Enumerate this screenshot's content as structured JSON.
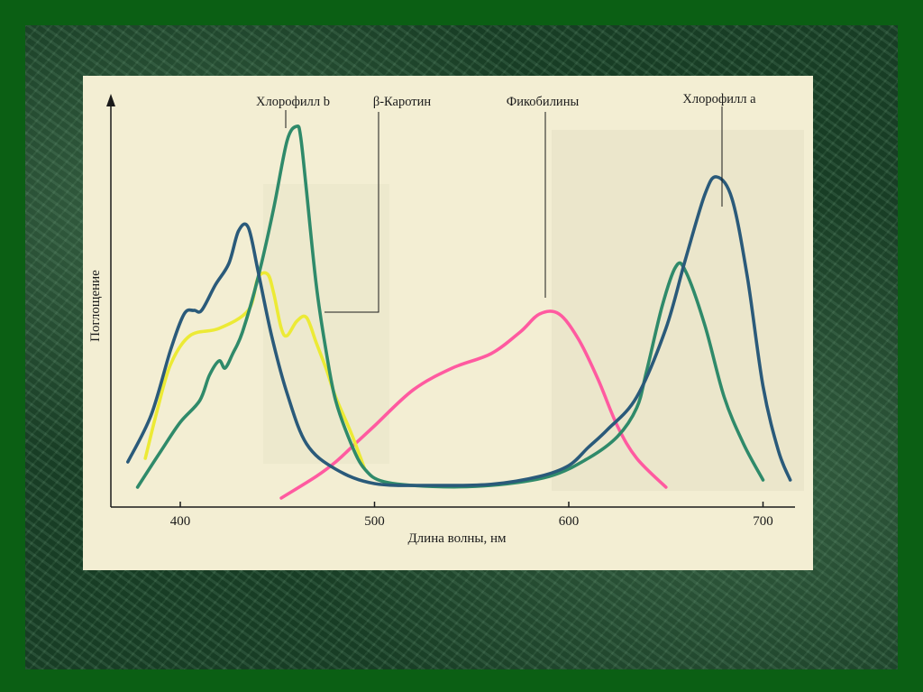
{
  "colors": {
    "frame": "#0b5f14",
    "paper": "#f3eed3"
  },
  "chart_data": {
    "type": "line",
    "xlabel": "Длина волны, нм",
    "ylabel": "Поглощение",
    "xlim": [
      370,
      720
    ],
    "ylim": [
      0,
      100
    ],
    "x_ticks": [
      400,
      500,
      600,
      700
    ],
    "x_tick_labels": [
      "400",
      "500",
      "600",
      "700"
    ],
    "grid": false,
    "legend": "labels on curves",
    "series": [
      {
        "name": "Хлорофилл a",
        "color": "#2a5a7a",
        "x": [
          373,
          385,
          395,
          402,
          407,
          411,
          418,
          425,
          430,
          435,
          440,
          447,
          455,
          465,
          480,
          500,
          530,
          560,
          585,
          600,
          610,
          620,
          635,
          650,
          660,
          670,
          676,
          684,
          692,
          700,
          708,
          714
        ],
        "y": [
          7,
          20,
          38,
          48,
          49,
          49,
          56,
          62,
          71,
          72,
          60,
          42,
          26,
          12,
          5,
          1,
          0.5,
          0.8,
          3,
          6,
          11,
          16,
          25,
          44,
          63,
          81,
          86,
          80,
          58,
          28,
          10,
          2
        ]
      },
      {
        "name": "Хлорофилл b",
        "color": "#2f8a6a",
        "x": [
          378,
          390,
          400,
          410,
          415,
          420,
          423,
          427,
          432,
          440,
          448,
          455,
          460,
          462,
          465,
          470,
          475,
          480,
          488,
          495,
          505,
          530,
          560,
          590,
          610,
          625,
          635,
          640,
          648,
          655,
          660,
          670,
          680,
          690,
          700
        ],
        "y": [
          0,
          10,
          18,
          24,
          31,
          35,
          33,
          37,
          43,
          58,
          77,
          96,
          100,
          97,
          82,
          56,
          38,
          24,
          12,
          5,
          1.5,
          0.2,
          0.5,
          3,
          8,
          14,
          22,
          32,
          50,
          61,
          60,
          45,
          25,
          12,
          2
        ]
      },
      {
        "name": "β-Каротин",
        "color": "#ecea35",
        "x": [
          382,
          388,
          395,
          405,
          420,
          435,
          440,
          445,
          448,
          452,
          455,
          460,
          465,
          470,
          475,
          480,
          488,
          495
        ],
        "y": [
          8,
          21,
          34,
          42,
          44,
          49,
          58,
          59,
          54,
          44,
          42,
          46,
          47,
          40,
          33,
          25,
          15,
          5
        ]
      },
      {
        "name": "Фикобилины",
        "color": "#ff5aa0",
        "x": [
          452,
          470,
          480,
          490,
          500,
          520,
          540,
          560,
          575,
          585,
          595,
          605,
          615,
          625,
          635,
          650
        ],
        "y": [
          -3,
          3,
          7,
          12,
          17,
          27,
          33,
          37,
          43,
          48,
          48,
          41,
          30,
          17,
          8,
          0
        ]
      }
    ],
    "annotations": [
      {
        "text": "Хлорофилл b"
      },
      {
        "text": "β-Каротин"
      },
      {
        "text": "Фикобилины"
      },
      {
        "text": "Хлорофилл a"
      }
    ]
  }
}
